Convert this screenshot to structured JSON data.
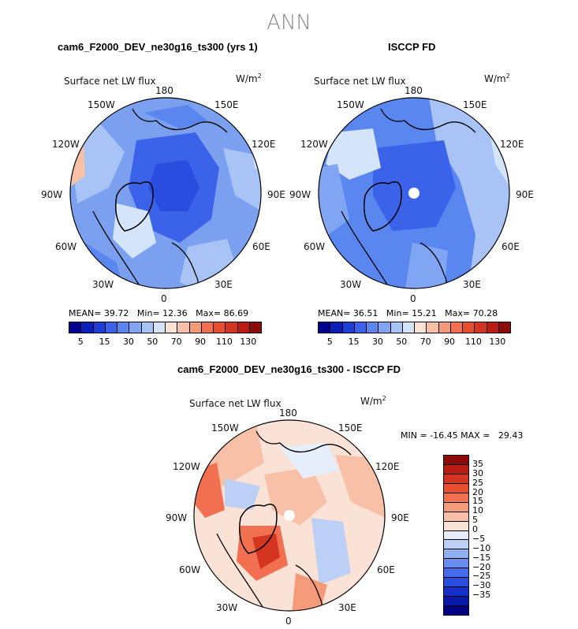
{
  "title": "ANN",
  "panels": [
    {
      "title": "cam6_F2000_DEV_ne30g16_ts300 (yrs 1)",
      "variable": "Surface net LW flux",
      "units": "W/m",
      "units_exp": "2",
      "lon_labels": {
        "n": "180",
        "ne1": "150E",
        "ne2": "120E",
        "e": "90E",
        "se1": "60E",
        "se2": "30E",
        "s": "0",
        "sw1": "30W",
        "sw2": "60W",
        "w": "90W",
        "nw1": "120W",
        "nw2": "150W"
      },
      "stats": {
        "mean_label": "MEAN=",
        "mean": "39.72",
        "min_label": "Min=",
        "min": "12.36",
        "max_label": "Max=",
        "max": "86.69"
      }
    },
    {
      "title": "ISCCP FD",
      "variable": "Surface net LW flux",
      "units": "W/m",
      "units_exp": "2",
      "lon_labels": {
        "n": "180",
        "ne1": "150E",
        "ne2": "120E",
        "e": "90E",
        "se1": "60E",
        "se2": "30E",
        "s": "0",
        "sw1": "30W",
        "sw2": "60W",
        "w": "90W",
        "nw1": "120W",
        "nw2": "150W"
      },
      "stats": {
        "mean_label": "MEAN=",
        "mean": "36.51",
        "min_label": "Min=",
        "min": "15.21",
        "max_label": "Max=",
        "max": "70.28"
      }
    },
    {
      "title": "cam6_F2000_DEV_ne30g16_ts300 - ISCCP FD",
      "variable": "Surface net LW flux",
      "units": "W/m",
      "units_exp": "2",
      "lon_labels": {
        "n": "180",
        "ne1": "150E",
        "ne2": "120E",
        "e": "90E",
        "se1": "60E",
        "se2": "30E",
        "s": "0",
        "sw1": "30W",
        "sw2": "60W",
        "w": "90W",
        "nw1": "120W",
        "nw2": "150W"
      },
      "stats": {
        "min_label": "MIN =",
        "min": "-16.45",
        "max_label": "MAX =",
        "max": "29.43"
      }
    }
  ],
  "colorbar_top": {
    "colors": [
      "#000090",
      "#0a1fb8",
      "#1d3fd8",
      "#3a63ea",
      "#5a86f0",
      "#80a6f3",
      "#a8c4f6",
      "#d4e4fa",
      "#fbe2d6",
      "#f8c0a6",
      "#f49a78",
      "#f07050",
      "#e84d2e",
      "#d43520",
      "#b81c14",
      "#8c0a0a"
    ],
    "labels": [
      "5",
      "15",
      "30",
      "50",
      "70",
      "90",
      "110",
      "130"
    ]
  },
  "colorbar_diff": {
    "colors": [
      "#8c0a0a",
      "#b81c14",
      "#d43520",
      "#e84d2e",
      "#f07050",
      "#f49a78",
      "#f8c0a6",
      "#fbe2d6",
      "#e6eefb",
      "#bcd0f6",
      "#90aef2",
      "#6a8eef",
      "#456ceb",
      "#2a4de0",
      "#1430c8",
      "#0818a8",
      "#000085"
    ],
    "labels": [
      "35",
      "30",
      "25",
      "20",
      "15",
      "10",
      "5",
      "0",
      "−5",
      "−10",
      "−15",
      "−20",
      "−25",
      "−30",
      "−35"
    ]
  }
}
